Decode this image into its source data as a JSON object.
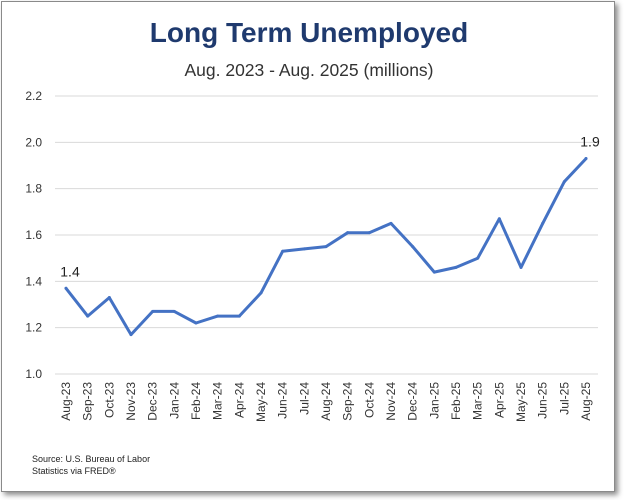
{
  "chart_data": {
    "type": "line",
    "title": "Long Term Unemployed",
    "subtitle": "Aug. 2023 - Aug. 2025 (millions)",
    "source": "Source: U.S. Bureau of Labor Statistics via FRED®",
    "categories": [
      "Aug-23",
      "Sep-23",
      "Oct-23",
      "Nov-23",
      "Dec-23",
      "Jan-24",
      "Feb-24",
      "Mar-24",
      "Apr-24",
      "May-24",
      "Jun-24",
      "Jul-24",
      "Aug-24",
      "Sep-24",
      "Oct-24",
      "Nov-24",
      "Dec-24",
      "Jan-25",
      "Feb-25",
      "Mar-25",
      "Apr-25",
      "May-25",
      "Jun-25",
      "Jul-25",
      "Aug-25"
    ],
    "series": [
      {
        "values": [
          1.37,
          1.25,
          1.33,
          1.17,
          1.27,
          1.27,
          1.22,
          1.25,
          1.25,
          1.35,
          1.53,
          1.54,
          1.55,
          1.61,
          1.61,
          1.65,
          1.55,
          1.44,
          1.46,
          1.5,
          1.67,
          1.46,
          1.65,
          1.83,
          1.93
        ],
        "color": "#4472c4"
      }
    ],
    "data_labels": [
      {
        "index": 0,
        "text": "1.4"
      },
      {
        "index": 24,
        "text": "1.9"
      }
    ],
    "y_ticks": [
      "1.0",
      "1.2",
      "1.4",
      "1.6",
      "1.8",
      "2.0",
      "2.2"
    ],
    "ylim": [
      1.0,
      2.2
    ],
    "grid": "horizontal",
    "legend": "none"
  }
}
